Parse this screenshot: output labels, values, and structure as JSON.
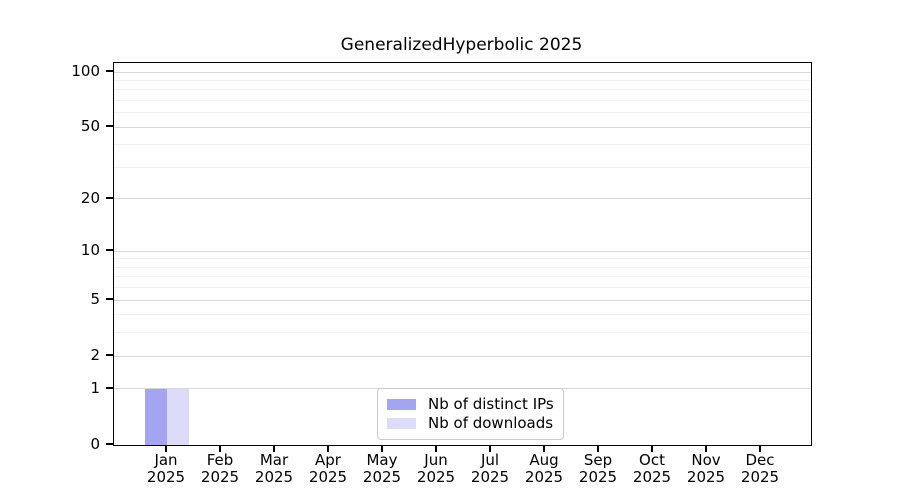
{
  "chart_data": {
    "type": "bar",
    "title": "GeneralizedHyperbolic 2025",
    "x": {
      "months": [
        "Jan",
        "Feb",
        "Mar",
        "Apr",
        "May",
        "Jun",
        "Jul",
        "Aug",
        "Sep",
        "Oct",
        "Nov",
        "Dec"
      ],
      "year": "2025"
    },
    "series": [
      {
        "name": "Nb of distinct IPs",
        "color": "#a4a4f0",
        "values": [
          1,
          0,
          0,
          0,
          0,
          0,
          0,
          0,
          0,
          0,
          0,
          0
        ]
      },
      {
        "name": "Nb of downloads",
        "color": "#dcdcf8",
        "values": [
          1,
          0,
          0,
          0,
          0,
          0,
          0,
          0,
          0,
          0,
          0,
          0
        ]
      }
    ],
    "y_axis": {
      "scale": "log1p",
      "major_ticks": [
        0,
        1,
        2,
        5,
        10,
        20,
        50,
        100
      ],
      "minor_ticks": [
        3,
        4,
        6,
        7,
        8,
        9,
        30,
        40,
        60,
        70,
        80,
        90
      ],
      "max_value": 112
    },
    "grid": {
      "major_color": "#d7d7d7",
      "minor_color": "#f0f0f0"
    },
    "legend": {
      "position": "lower center"
    },
    "colors": {
      "spine": "#000000",
      "text": "#000000",
      "legend_border": "#cbcbcb"
    }
  }
}
